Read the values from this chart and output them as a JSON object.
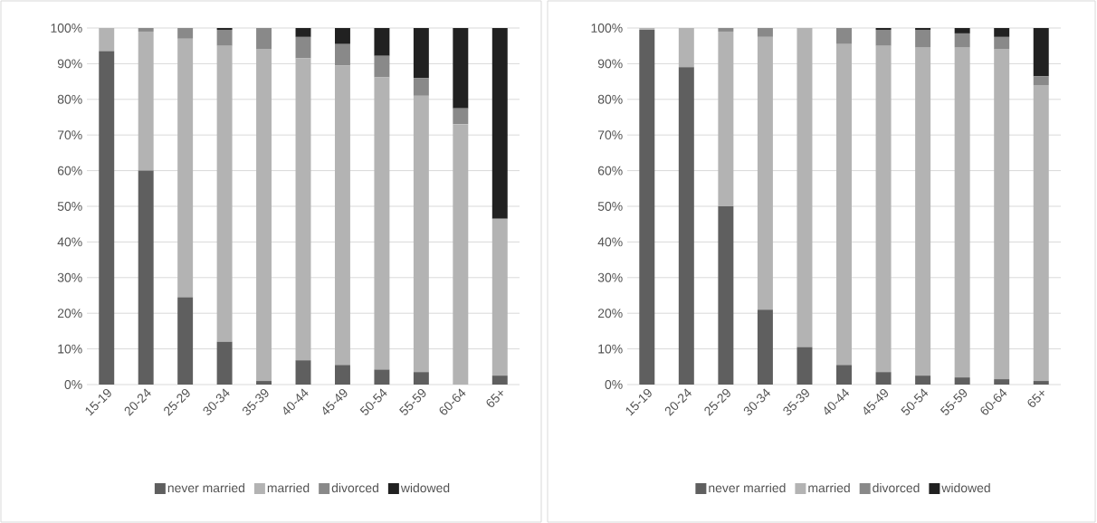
{
  "chart_data": [
    {
      "type": "bar",
      "stacked": true,
      "grid": "y",
      "legend": "bottom",
      "ylim": [
        0,
        100
      ],
      "yticks": [
        {
          "value": 0,
          "label": "0%"
        },
        {
          "value": 10,
          "label": "10%"
        },
        {
          "value": 20,
          "label": "20%"
        },
        {
          "value": 30,
          "label": "30%"
        },
        {
          "value": 40,
          "label": "40%"
        },
        {
          "value": 50,
          "label": "50%"
        },
        {
          "value": 60,
          "label": "60%"
        },
        {
          "value": 70,
          "label": "70%"
        },
        {
          "value": 80,
          "label": "80%"
        },
        {
          "value": 90,
          "label": "90%"
        },
        {
          "value": 100,
          "label": "100%"
        }
      ],
      "categories": [
        "15-19",
        "20-24",
        "25-29",
        "30-34",
        "35-39",
        "40-44",
        "45-49",
        "50-54",
        "55-59",
        "60-64",
        "65+"
      ],
      "series": [
        {
          "name": "never married",
          "color": "#5f5f5f",
          "values": [
            93.5,
            60,
            24.5,
            12,
            1,
            6.8,
            5.5,
            4.2,
            3.5,
            0,
            2.5
          ]
        },
        {
          "name": "married",
          "color": "#b3b3b3",
          "values": [
            6.5,
            39,
            72.5,
            83,
            93,
            84.7,
            84,
            82,
            77.5,
            73,
            44
          ]
        },
        {
          "name": "divorced",
          "color": "#898989",
          "values": [
            0,
            1,
            3,
            4.5,
            6,
            6,
            6,
            6,
            5,
            4.5,
            0
          ]
        },
        {
          "name": "widowed",
          "color": "#212121",
          "values": [
            0,
            0,
            0,
            0.5,
            0,
            2.5,
            4.5,
            7.8,
            14,
            22.5,
            53.5
          ]
        }
      ]
    },
    {
      "type": "bar",
      "stacked": true,
      "grid": "y",
      "legend": "bottom",
      "ylim": [
        0,
        100
      ],
      "yticks": [
        {
          "value": 0,
          "label": "0%"
        },
        {
          "value": 10,
          "label": "10%"
        },
        {
          "value": 20,
          "label": "20%"
        },
        {
          "value": 30,
          "label": "30%"
        },
        {
          "value": 40,
          "label": "40%"
        },
        {
          "value": 50,
          "label": "50%"
        },
        {
          "value": 60,
          "label": "60%"
        },
        {
          "value": 70,
          "label": "70%"
        },
        {
          "value": 80,
          "label": "80%"
        },
        {
          "value": 90,
          "label": "90%"
        },
        {
          "value": 100,
          "label": "100%"
        }
      ],
      "categories": [
        "15-19",
        "20-24",
        "25-29",
        "30-34",
        "35-39",
        "40-44",
        "45-49",
        "50-54",
        "55-59",
        "60-64",
        "65+"
      ],
      "series": [
        {
          "name": "never married",
          "color": "#5f5f5f",
          "values": [
            99.5,
            89,
            50,
            21,
            10.5,
            5.5,
            3.5,
            2.5,
            2,
            1.5,
            1
          ]
        },
        {
          "name": "married",
          "color": "#b3b3b3",
          "values": [
            0.5,
            11,
            49,
            76.5,
            89.5,
            90,
            91.5,
            92,
            92.5,
            92.5,
            83
          ]
        },
        {
          "name": "divorced",
          "color": "#898989",
          "values": [
            0,
            0,
            1,
            2.5,
            0,
            4.5,
            4.5,
            5,
            4,
            3.5,
            2.5
          ]
        },
        {
          "name": "widowed",
          "color": "#212121",
          "values": [
            0,
            0,
            0,
            0,
            0,
            0,
            0.5,
            0.5,
            1.5,
            2.5,
            13.5
          ]
        }
      ]
    }
  ]
}
